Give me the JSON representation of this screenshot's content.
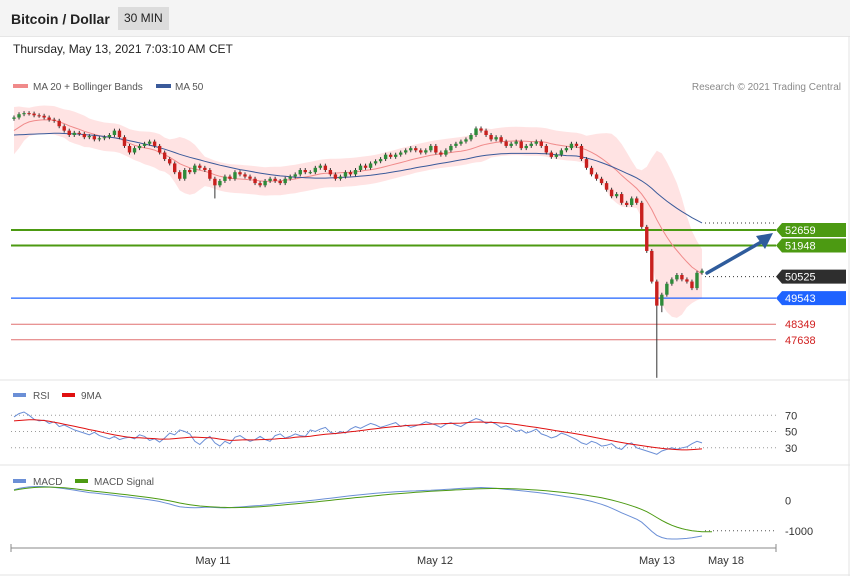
{
  "header": {
    "title": "Bitcoin / Dollar",
    "timeframe": "30 MIN",
    "datetime": "Thursday, May 13, 2021 7:03:10 AM CET"
  },
  "legend": {
    "ma20": "MA 20 + Bollinger Bands",
    "ma50": "MA 50",
    "credit": "Research © 2021 Trading Central",
    "rsi": "RSI",
    "rsi_ma": "9MA",
    "macd": "MACD",
    "macd_signal": "MACD Signal"
  },
  "colors": {
    "ma20": "#f08a8a",
    "ma50": "#3a5a9a",
    "band": "#ffdede",
    "up": "#2e8b3a",
    "down": "#c8201e",
    "green_level": "#4c9a12",
    "blue_level": "#1f63ff",
    "red_level": "#e07070",
    "current_tag": "#2e2e2e",
    "arrow": "#2f5c9c",
    "rsi": "#6b8fd6",
    "rsi_ma": "#e01010",
    "macd": "#6b8fd6",
    "macd_signal": "#4c9a12"
  },
  "chart_data": [
    {
      "type": "candlestick",
      "ylim": [
        45800,
        58600
      ],
      "levels": [
        {
          "value": 52659,
          "label": "52659",
          "kind": "resistance"
        },
        {
          "value": 51948,
          "label": "51948",
          "kind": "resistance"
        },
        {
          "value": 50525,
          "label": "50525",
          "kind": "current"
        },
        {
          "value": 49543,
          "label": "49543",
          "kind": "pivot"
        },
        {
          "value": 48349,
          "label": "48349",
          "kind": "support"
        },
        {
          "value": 47638,
          "label": "47638",
          "kind": "support"
        }
      ],
      "x_ticks": [
        "May 11",
        "May 12",
        "May 13",
        "May 18"
      ],
      "close": [
        57800,
        57950,
        58000,
        57980,
        57900,
        57880,
        57800,
        57700,
        57650,
        57400,
        57200,
        57000,
        57100,
        57050,
        56900,
        56950,
        56800,
        56850,
        56900,
        57000,
        57200,
        56900,
        56500,
        56200,
        56400,
        56500,
        56600,
        56700,
        56500,
        56200,
        55900,
        55700,
        55300,
        55000,
        55400,
        55300,
        55600,
        55500,
        55400,
        55000,
        54700,
        54900,
        55100,
        55000,
        55300,
        55200,
        55100,
        55000,
        54800,
        54700,
        54900,
        55000,
        54900,
        54800,
        55000,
        55100,
        55200,
        55400,
        55300,
        55300,
        55500,
        55600,
        55400,
        55200,
        55000,
        55100,
        55300,
        55200,
        55400,
        55600,
        55500,
        55700,
        55800,
        55900,
        56100,
        56000,
        56100,
        56200,
        56300,
        56400,
        56300,
        56200,
        56300,
        56500,
        56200,
        56100,
        56300,
        56500,
        56600,
        56700,
        56800,
        57000,
        57300,
        57200,
        57000,
        56800,
        56900,
        56700,
        56500,
        56600,
        56700,
        56400,
        56500,
        56600,
        56700,
        56500,
        56200,
        56000,
        56100,
        56300,
        56400,
        56600,
        56500,
        55900,
        55500,
        55200,
        55000,
        54800,
        54500,
        54200,
        54300,
        53900,
        53800,
        54100,
        53900,
        52800,
        51700,
        50300,
        49200,
        49700,
        50200,
        50400,
        50600,
        50400,
        50300,
        50000,
        50700,
        50800
      ],
      "ma20": [
        57200,
        57350,
        57500,
        57600,
        57650,
        57680,
        57700,
        57690,
        57670,
        57600,
        57520,
        57420,
        57340,
        57260,
        57170,
        57100,
        57030,
        56970,
        56920,
        56900,
        56880,
        56830,
        56730,
        56620,
        56530,
        56470,
        56410,
        56370,
        56310,
        56210,
        56100,
        55980,
        55840,
        55690,
        55590,
        55500,
        55440,
        55390,
        55340,
        55270,
        55180,
        55110,
        55060,
        55020,
        55000,
        54990,
        54970,
        54950,
        54930,
        54900,
        54880,
        54890,
        54900,
        54900,
        54930,
        54960,
        54990,
        55040,
        55080,
        55120,
        55170,
        55220,
        55250,
        55260,
        55260,
        55270,
        55290,
        55300,
        55320,
        55350,
        55380,
        55410,
        55450,
        55500,
        55560,
        55620,
        55680,
        55740,
        55800,
        55860,
        55920,
        55970,
        56020,
        56070,
        56110,
        56140,
        56170,
        56200,
        56230,
        56260,
        56300,
        56360,
        56440,
        56520,
        56580,
        56620,
        56660,
        56690,
        56710,
        56720,
        56730,
        56720,
        56710,
        56700,
        56700,
        56690,
        56660,
        56600,
        56550,
        56520,
        56490,
        56470,
        56450,
        56400,
        56320,
        56210,
        56080,
        55930,
        55760,
        55570,
        55380,
        55160,
        54950,
        54760,
        54560,
        54300,
        53970,
        53590,
        53130,
        52710,
        52340,
        52000,
        51720,
        51450,
        51200,
        50960,
        50800,
        50650
      ],
      "ma50": [
        57000,
        57010,
        57020,
        57030,
        57040,
        57050,
        57060,
        57070,
        57080,
        57080,
        57070,
        57060,
        57050,
        57040,
        57020,
        57000,
        56980,
        56960,
        56930,
        56900,
        56870,
        56830,
        56790,
        56740,
        56690,
        56640,
        56590,
        56540,
        56480,
        56420,
        56350,
        56280,
        56200,
        56120,
        56050,
        55980,
        55920,
        55860,
        55800,
        55740,
        55680,
        55620,
        55570,
        55520,
        55470,
        55420,
        55380,
        55340,
        55300,
        55260,
        55220,
        55190,
        55160,
        55130,
        55110,
        55090,
        55070,
        55060,
        55050,
        55040,
        55030,
        55030,
        55030,
        55040,
        55050,
        55060,
        55070,
        55080,
        55100,
        55120,
        55140,
        55160,
        55190,
        55220,
        55250,
        55290,
        55330,
        55370,
        55410,
        55450,
        55500,
        55540,
        55580,
        55620,
        55660,
        55700,
        55740,
        55780,
        55820,
        55860,
        55900,
        55950,
        56000,
        56040,
        56070,
        56100,
        56120,
        56140,
        56150,
        56160,
        56160,
        56160,
        56160,
        56160,
        56160,
        56150,
        56140,
        56120,
        56100,
        56080,
        56060,
        56050,
        56040,
        56000,
        55950,
        55890,
        55820,
        55740,
        55650,
        55560,
        55460,
        55360,
        55250,
        55150,
        55040,
        54900,
        54740,
        54560,
        54350,
        54160,
        53980,
        53810,
        53650,
        53500,
        53360,
        53220,
        53100,
        52980
      ]
    },
    {
      "type": "line",
      "name": "RSI",
      "ticks": [
        "70",
        "50",
        "30"
      ],
      "ylim": [
        10,
        90
      ],
      "rsi": [
        68,
        72,
        74,
        70,
        65,
        63,
        64,
        60,
        62,
        56,
        58,
        55,
        52,
        50,
        48,
        46,
        49,
        45,
        43,
        41,
        44,
        40,
        42,
        43,
        41,
        46,
        44,
        39,
        41,
        37,
        42,
        48,
        46,
        52,
        50,
        47,
        38,
        34,
        40,
        44,
        36,
        32,
        38,
        35,
        43,
        45,
        41,
        38,
        40,
        44,
        40,
        38,
        45,
        47,
        42,
        44,
        47,
        45,
        44,
        52,
        50,
        53,
        55,
        49,
        47,
        50,
        48,
        53,
        56,
        54,
        57,
        60,
        58,
        55,
        57,
        59,
        61,
        56,
        58,
        55,
        57,
        59,
        62,
        60,
        58,
        55,
        59,
        61,
        58,
        56,
        60,
        63,
        66,
        64,
        60,
        62,
        59,
        55,
        57,
        54,
        50,
        52,
        48,
        50,
        53,
        47,
        45,
        42,
        44,
        48,
        46,
        43,
        40,
        36,
        34,
        38,
        36,
        32,
        33,
        35,
        30,
        28,
        34,
        36,
        30,
        28,
        26,
        24,
        22,
        26,
        28,
        30,
        28,
        30,
        31,
        35,
        38,
        36
      ],
      "ma": [
        63,
        63.5,
        64,
        64.5,
        64.4,
        64,
        63.5,
        62.5,
        61.4,
        60.3,
        59,
        57.7,
        56.4,
        55,
        53.8,
        52.4,
        51.2,
        49.9,
        48.4,
        47,
        45.8,
        44.7,
        43.7,
        42.9,
        42.3,
        42.2,
        41.9,
        41.5,
        41.2,
        40.6,
        40.6,
        40.8,
        41.2,
        41.9,
        42.4,
        43,
        43.1,
        42.8,
        42.5,
        42.4,
        41.6,
        40.6,
        39.8,
        39.1,
        39.2,
        39.5,
        39.8,
        39.7,
        39.6,
        40,
        40.2,
        40.4,
        40.8,
        41.4,
        41.5,
        42,
        43,
        43.4,
        43.6,
        44.2,
        45.1,
        45.8,
        46.5,
        47,
        47.5,
        48.2,
        48.9,
        49.6,
        50.3,
        51.1,
        51.9,
        52.7,
        53.5,
        54.2,
        54.9,
        55.5,
        56.2,
        56.7,
        57.3,
        57.6,
        57.9,
        58.3,
        58.8,
        59.1,
        59.4,
        59.5,
        59.8,
        60,
        60.2,
        60.4,
        60.8,
        61.3,
        61.6,
        61.7,
        61.5,
        61.2,
        60.9,
        60.5,
        60,
        59.3,
        58.6,
        57.7,
        56.8,
        55.9,
        55,
        54.1,
        53.1,
        52,
        50.9,
        50,
        49.1,
        48.1,
        47.1,
        45.9,
        44.7,
        43.5,
        42.3,
        41.1,
        39.9,
        38.8,
        37.6,
        36.5,
        35.4,
        34.4,
        33.5,
        32.6,
        31.7,
        30.8,
        29.9,
        29.2,
        28.6,
        28.1,
        27.7,
        27.4,
        27.4,
        27.7,
        28.2,
        28.6
      ]
    },
    {
      "type": "line",
      "name": "MACD",
      "ticks": [
        "0",
        "-1000"
      ],
      "ylim": [
        -1500,
        700
      ],
      "macd": [
        350,
        390,
        420,
        440,
        450,
        455,
        450,
        440,
        425,
        405,
        385,
        360,
        335,
        305,
        280,
        255,
        240,
        220,
        200,
        180,
        160,
        140,
        120,
        100,
        80,
        60,
        40,
        15,
        -10,
        -40,
        -80,
        -120,
        -170,
        -210,
        -230,
        -240,
        -245,
        -240,
        -230,
        -225,
        -235,
        -245,
        -250,
        -240,
        -230,
        -220,
        -205,
        -190,
        -180,
        -170,
        -155,
        -140,
        -120,
        -100,
        -85,
        -70,
        -55,
        -40,
        -25,
        -5,
        10,
        30,
        50,
        70,
        90,
        110,
        130,
        150,
        165,
        180,
        200,
        215,
        230,
        245,
        260,
        270,
        280,
        290,
        300,
        305,
        310,
        320,
        325,
        330,
        340,
        350,
        360,
        370,
        380,
        390,
        400,
        405,
        410,
        420,
        415,
        405,
        390,
        375,
        360,
        345,
        330,
        315,
        295,
        275,
        260,
        240,
        220,
        195,
        170,
        145,
        120,
        95,
        70,
        40,
        5,
        -35,
        -80,
        -130,
        -190,
        -260,
        -330,
        -410,
        -480,
        -550,
        -620,
        -720,
        -870,
        -1020,
        -1150,
        -1220,
        -1260,
        -1270,
        -1270,
        -1260,
        -1250,
        -1230,
        -1200,
        -1170
      ],
      "signal": [
        330,
        360,
        385,
        405,
        420,
        430,
        435,
        435,
        430,
        420,
        410,
        395,
        380,
        360,
        340,
        320,
        300,
        280,
        262,
        244,
        226,
        208,
        190,
        170,
        150,
        130,
        110,
        88,
        64,
        40,
        12,
        -18,
        -52,
        -88,
        -118,
        -145,
        -168,
        -186,
        -200,
        -210,
        -220,
        -228,
        -234,
        -238,
        -238,
        -236,
        -232,
        -226,
        -218,
        -210,
        -200,
        -188,
        -175,
        -160,
        -146,
        -131,
        -116,
        -101,
        -86,
        -70,
        -54,
        -37,
        -20,
        -2,
        16,
        34,
        52,
        70,
        88,
        104,
        120,
        136,
        152,
        167,
        182,
        196,
        210,
        224,
        237,
        250,
        262,
        274,
        285,
        295,
        305,
        314,
        323,
        332,
        341,
        350,
        358,
        366,
        374,
        381,
        386,
        389,
        390,
        389,
        386,
        381,
        375,
        368,
        359,
        349,
        338,
        326,
        313,
        298,
        282,
        265,
        247,
        228,
        208,
        187,
        164,
        139,
        112,
        82,
        48,
        10,
        -32,
        -78,
        -128,
        -180,
        -235,
        -298,
        -375,
        -465,
        -565,
        -660,
        -745,
        -820,
        -880,
        -930,
        -968,
        -997,
        -1018,
        -1030,
        -1035,
        -1035
      ]
    }
  ]
}
